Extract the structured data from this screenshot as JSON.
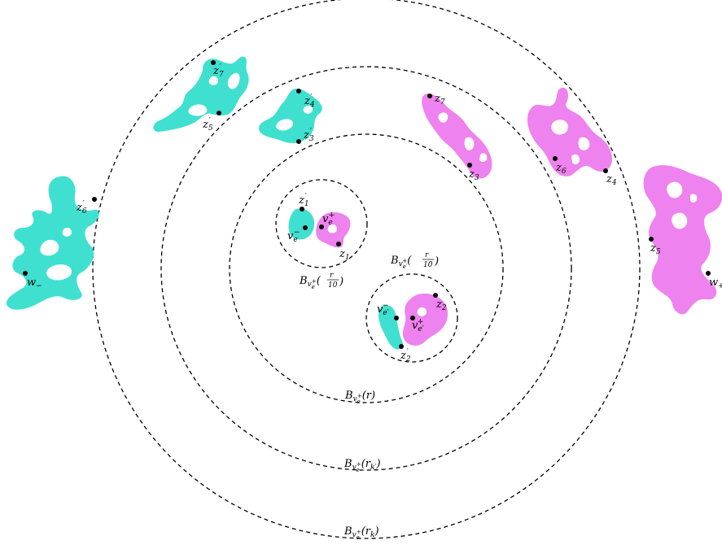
{
  "colors": {
    "cluster_a": "#40e0d0",
    "cluster_b": "#ee82ee",
    "circles": "#000000"
  },
  "balls": {
    "r": {
      "base": "B",
      "sub": "v",
      "subsub": "e",
      "subsup": "+",
      "arg": "(r)"
    },
    "rkp": {
      "base": "B",
      "sub": "v",
      "subsub": "e",
      "subsup": "+",
      "arg": "(r",
      "argsub": "k′",
      "argclose": ")"
    },
    "rk": {
      "base": "B",
      "sub": "v",
      "subsub": "e",
      "subsup": "+",
      "arg": "(r",
      "argsub": "k",
      "argclose": ")"
    },
    "small_e": {
      "base": "B",
      "sub": "v",
      "subsub": "e",
      "subsup": "+",
      "open": "(",
      "num": "r",
      "den": "10",
      "close": ")"
    },
    "small_ep": {
      "base": "B",
      "sub": "v",
      "subsub": "e′",
      "subsup": "+",
      "open": "(",
      "num": "r",
      "den": "10",
      "close": ")"
    }
  },
  "points": {
    "z1": {
      "base": "z",
      "sub": "1"
    },
    "z1p": {
      "base": "z",
      "sub": "1",
      "prime": "′"
    },
    "z2": {
      "base": "z",
      "sub": "2"
    },
    "z2p": {
      "base": "z",
      "sub": "2",
      "prime": "′"
    },
    "z3": {
      "base": "z",
      "sub": "3"
    },
    "z3p": {
      "base": "z",
      "sub": "3",
      "prime": "′"
    },
    "z4": {
      "base": "z",
      "sub": "4"
    },
    "z4p": {
      "base": "z",
      "sub": "4",
      "prime": "′"
    },
    "z5": {
      "base": "z",
      "sub": "5"
    },
    "z5p": {
      "base": "z",
      "sub": "5",
      "prime": "′"
    },
    "z6": {
      "base": "z",
      "sub": "6"
    },
    "z6p": {
      "base": "z",
      "sub": "6",
      "prime": "′"
    },
    "z7": {
      "base": "z",
      "sub": "7"
    },
    "z7p": {
      "base": "z",
      "sub": "7",
      "prime": "′"
    },
    "ve_plus": {
      "base": "v",
      "sub": "e",
      "sup": "+"
    },
    "ve_minus": {
      "base": "v",
      "sub": "e",
      "sup": "−"
    },
    "vep_plus": {
      "base": "v",
      "sub": "e′",
      "sup": "+"
    },
    "vep_minus": {
      "base": "v",
      "sub": "e′",
      "sup": "−"
    },
    "w_minus": {
      "base": "w",
      "sub": "−"
    },
    "w_plus": {
      "base": "w",
      "sub": "+"
    }
  }
}
